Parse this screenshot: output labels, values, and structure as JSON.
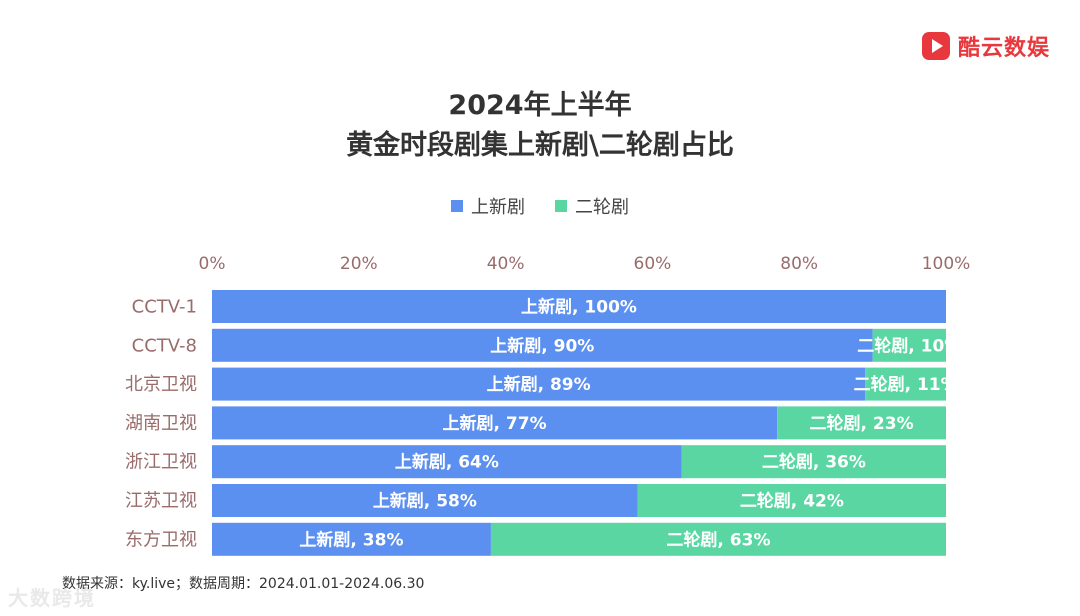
{
  "brand": {
    "name": "酷云数娱",
    "color": "#e8383d"
  },
  "title": {
    "line1": "2024年上半年",
    "line2": "黄金时段剧集上新剧\\二轮剧占比"
  },
  "legend": [
    {
      "label": "上新剧",
      "color": "#5b8ff0"
    },
    {
      "label": "二轮剧",
      "color": "#5ad6a2"
    }
  ],
  "chart_data": {
    "type": "bar",
    "orientation": "horizontal",
    "stacked": true,
    "categories": [
      "CCTV-1",
      "CCTV-8",
      "北京卫视",
      "湖南卫视",
      "浙江卫视",
      "江苏卫视",
      "东方卫视"
    ],
    "series": [
      {
        "name": "上新剧",
        "color": "#5b8ff0",
        "values": [
          100,
          90,
          89,
          77,
          64,
          58,
          38
        ]
      },
      {
        "name": "二轮剧",
        "color": "#5ad6a2",
        "values": [
          0,
          10,
          11,
          23,
          36,
          42,
          63
        ]
      }
    ],
    "xticks": [
      "0%",
      "20%",
      "40%",
      "60%",
      "80%",
      "100%"
    ],
    "xlim": [
      0,
      100
    ],
    "legend_position": "top",
    "grid": false
  },
  "footer": "数据来源：ky.live；数据周期：2024.01.01-2024.06.30",
  "watermark": "大数跨境"
}
